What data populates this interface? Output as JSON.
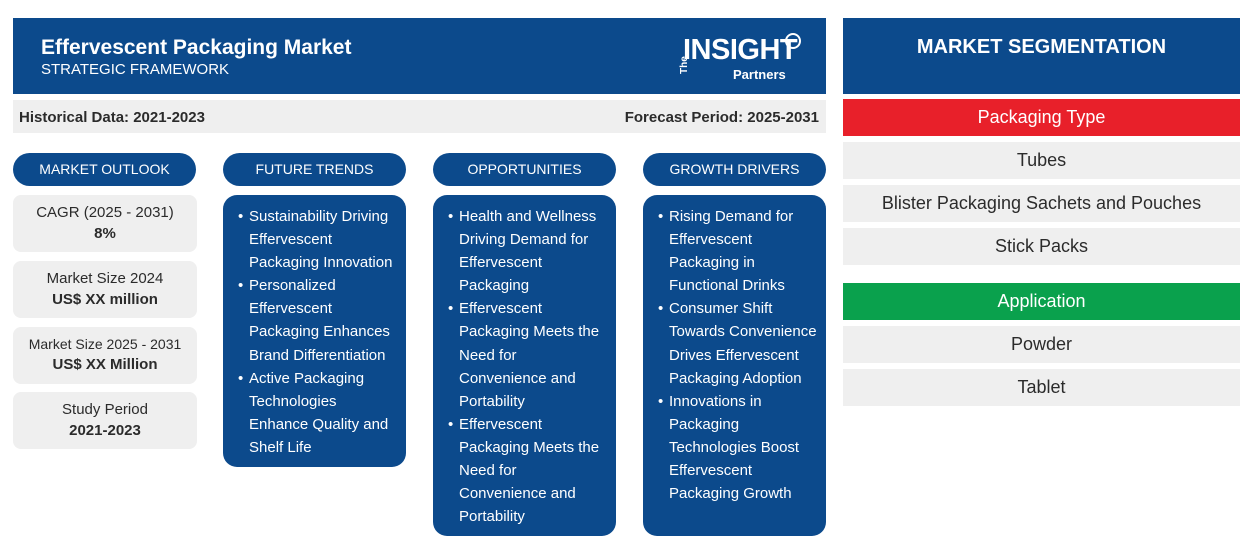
{
  "header": {
    "title": "Effervescent Packaging Market",
    "subtitle": "STRATEGIC FRAMEWORK",
    "logo": {
      "the": "The",
      "brand": "INSIGHT",
      "partners": "Partners"
    }
  },
  "periods": {
    "historical": "Historical Data: 2021-2023",
    "forecast": "Forecast Period: 2025-2031"
  },
  "market_outlook": {
    "label": "MARKET OUTLOOK",
    "stats": [
      {
        "label": "CAGR (2025 - 2031)",
        "value": "8%"
      },
      {
        "label": "Market Size 2024",
        "value": "US$ XX million"
      },
      {
        "label": "Market Size 2025 - 2031",
        "value": "US$ XX Million"
      },
      {
        "label": "Study Period",
        "value": "2021-2023"
      }
    ]
  },
  "future_trends": {
    "label": "FUTURE TRENDS",
    "items": [
      "Sustainability Driving Effervescent Packaging Innovation",
      "Personalized Effervescent Packaging Enhances Brand Differentiation",
      "Active Packaging Technologies Enhance Quality and Shelf Life"
    ]
  },
  "opportunities": {
    "label": "OPPORTUNITIES",
    "items": [
      "Health and Wellness Driving Demand for Effervescent Packaging",
      "Effervescent Packaging Meets the Need for Convenience and Portability",
      "Effervescent Packaging Meets the Need for Convenience and Portability"
    ]
  },
  "growth_drivers": {
    "label": "GROWTH DRIVERS",
    "items": [
      "Rising Demand for Effervescent Packaging in Functional Drinks",
      "Consumer Shift Towards Convenience Drives Effervescent Packaging Adoption",
      "Innovations in Packaging Technologies Boost Effervescent Packaging Growth"
    ]
  },
  "segmentation": {
    "title": "MARKET SEGMENTATION",
    "categories": [
      {
        "name": "Packaging Type",
        "color": "#e8202a",
        "items": [
          "Tubes",
          "Blister Packaging Sachets and Pouches",
          "Stick Packs"
        ]
      },
      {
        "name": "Application",
        "color": "#0aa14d",
        "items": [
          "Powder",
          "Tablet"
        ]
      }
    ]
  },
  "colors": {
    "primary": "#0c4a8c",
    "panel": "#efefef"
  }
}
